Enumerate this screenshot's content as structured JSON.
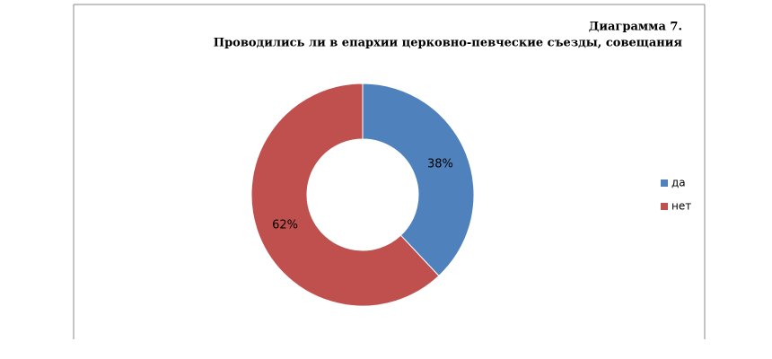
{
  "chart_data": {
    "type": "donut",
    "title": "Диаграмма 7.",
    "subtitle": "Проводились ли в епархии церковно-певческие  съезды, совещания",
    "categories": [
      "да",
      "нет"
    ],
    "values": [
      38,
      62
    ],
    "value_labels": [
      "38%",
      "62%"
    ],
    "colors": [
      "#4f81bd",
      "#c0504d"
    ],
    "legend": "right"
  }
}
